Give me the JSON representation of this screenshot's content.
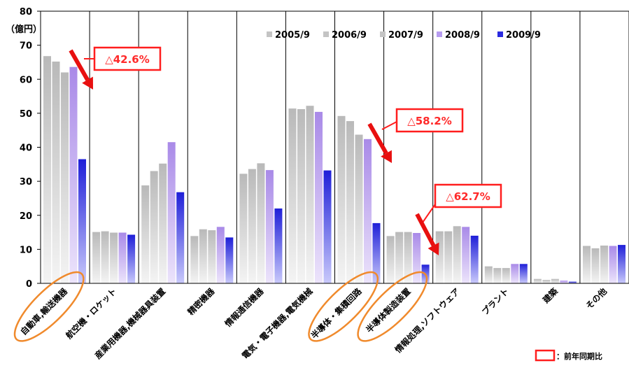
{
  "chart_data": {
    "type": "bar",
    "y_unit_label": "（億円）",
    "ylim": [
      0,
      80
    ],
    "yticks": [
      0,
      10,
      20,
      30,
      40,
      50,
      60,
      70,
      80
    ],
    "grid": "vertical category separators",
    "legend_position": "top-right",
    "categories": [
      "自動車,輸送機器",
      "航空機・ロケット",
      "産業用機器,機械器具装置",
      "精密機器",
      "情報通信機器",
      "電気・電子機器,電気機械",
      "半導体・集積回路",
      "半導体製造装置",
      "情報処理,ソフトウェア",
      "プラント",
      "建築",
      "その他"
    ],
    "series": [
      {
        "name": "2005/9",
        "color": "#c4c4c4",
        "values": [
          66.8,
          15.1,
          28.8,
          13.9,
          32.2,
          51.4,
          49.2,
          13.9,
          15.3,
          5.0,
          1.3,
          11.0
        ]
      },
      {
        "name": "2006/9",
        "color": "#c4c4c4",
        "values": [
          65.2,
          15.3,
          33.0,
          15.9,
          33.6,
          51.2,
          47.7,
          15.1,
          15.3,
          4.5,
          1.0,
          10.3
        ]
      },
      {
        "name": "2007/9",
        "color": "#c4c4c4",
        "values": [
          62.0,
          14.9,
          35.2,
          15.6,
          35.3,
          52.2,
          43.7,
          15.1,
          16.8,
          4.5,
          1.3,
          11.1
        ]
      },
      {
        "name": "2008/9",
        "color": "#b79cf0",
        "values": [
          63.6,
          14.9,
          41.5,
          16.6,
          33.3,
          50.4,
          42.4,
          14.8,
          16.6,
          5.7,
          0.8,
          11.0
        ]
      },
      {
        "name": "2009/9",
        "color": "#2a2ae0",
        "values": [
          36.5,
          14.3,
          26.8,
          13.5,
          22.0,
          33.2,
          17.7,
          5.5,
          14.0,
          5.7,
          0.5,
          11.3
        ]
      }
    ],
    "annotations": [
      {
        "label": "△42.6%",
        "category": "自動車,輸送機器"
      },
      {
        "label": "△58.2%",
        "category": "半導体・集積回路"
      },
      {
        "label": "△62.7%",
        "category": "半導体製造装置"
      }
    ],
    "highlighted_categories": [
      "自動車,輸送機器",
      "半導体・集積回路",
      "半導体製造装置"
    ],
    "legend_note": "：前年同期比"
  }
}
